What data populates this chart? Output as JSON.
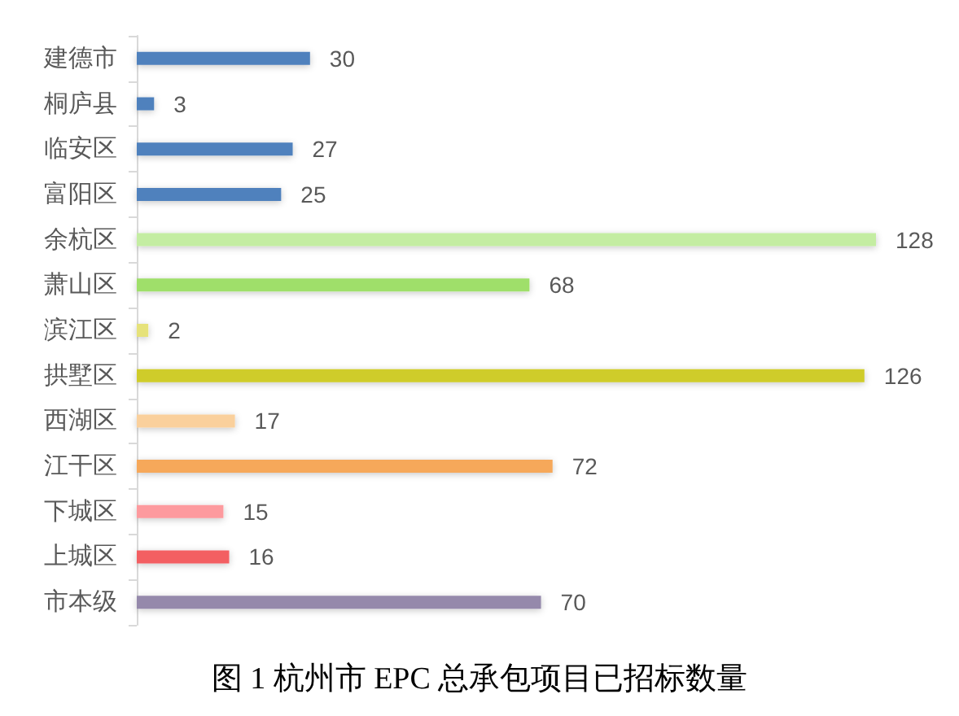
{
  "chart_data": {
    "type": "bar",
    "orientation": "horizontal",
    "title": "图 1 杭州市 EPC 总承包项目已招标数量",
    "categories": [
      "建德市",
      "桐庐县",
      "临安区",
      "富阳区",
      "余杭区",
      "萧山区",
      "滨江区",
      "拱墅区",
      "西湖区",
      "江干区",
      "下城区",
      "上城区",
      "市本级"
    ],
    "values": [
      30,
      3,
      27,
      25,
      128,
      68,
      2,
      126,
      17,
      72,
      15,
      16,
      70
    ],
    "colors": [
      "#4f81bd",
      "#4f81bd",
      "#4f81bd",
      "#4f81bd",
      "#c4eda2",
      "#9fdf6b",
      "#e6e27a",
      "#cfcc2a",
      "#fad09c",
      "#f6a85a",
      "#fd9a9e",
      "#f35f62",
      "#9589ab"
    ],
    "data_labels": true
  }
}
